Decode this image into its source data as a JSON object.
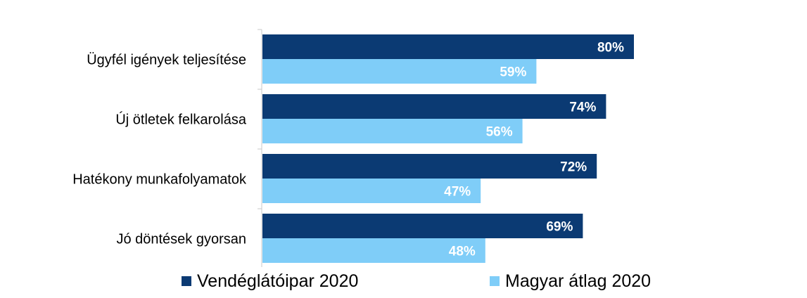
{
  "chart_data": {
    "type": "bar",
    "orientation": "horizontal",
    "categories": [
      "Ügyfél igények teljesítése",
      "Új ötletek felkarolása",
      "Hatékony munkafolyamatok",
      "Jó döntések gyorsan"
    ],
    "series": [
      {
        "name": "Vendéglátóipar 2020",
        "values": [
          80,
          74,
          72,
          69
        ],
        "labels": [
          "80%",
          "74%",
          "72%",
          "69%"
        ],
        "color": "#0b3a73"
      },
      {
        "name": "Magyar átlag 2020",
        "values": [
          59,
          56,
          47,
          48
        ],
        "labels": [
          "59%",
          "56%",
          "47%",
          "48%"
        ],
        "color": "#7fcdf8"
      }
    ],
    "xlim": [
      0,
      100
    ],
    "grid": false,
    "legend": "bottom"
  }
}
